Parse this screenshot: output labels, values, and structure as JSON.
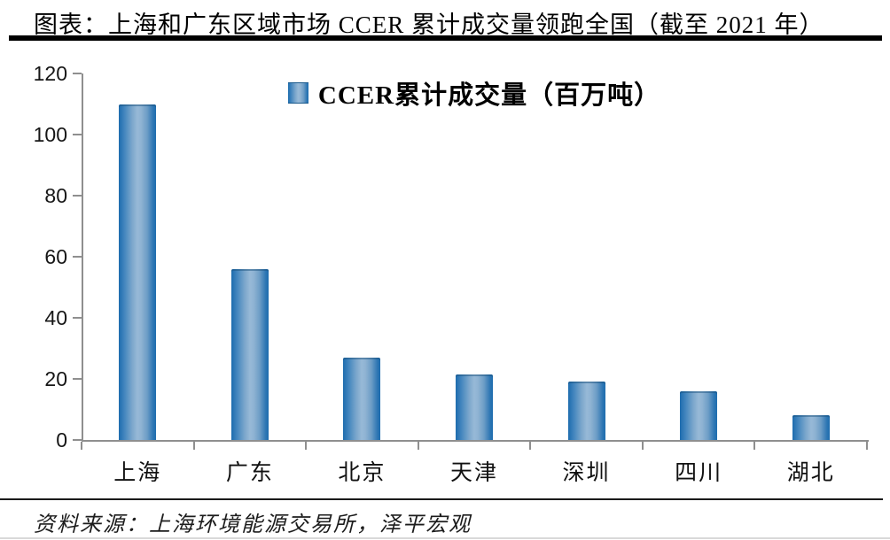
{
  "header": {
    "title": "图表：上海和广东区域市场 CCER 累计成交量领跑全国（截至 2021 年）"
  },
  "footer": {
    "source": "资料来源：上海环境能源交易所，泽平宏观"
  },
  "chart_data": {
    "type": "bar",
    "title": "上海和广东区域市场CCER累计成交量领跑全国（截至2021年）",
    "legend": "CCER累计成交量（百万吨）",
    "legend_position": "top-center",
    "categories": [
      "上海",
      "广东",
      "北京",
      "天津",
      "深圳",
      "四川",
      "湖北"
    ],
    "values": [
      110,
      56,
      27,
      21.5,
      19,
      16,
      8
    ],
    "xlabel": "",
    "ylabel": "",
    "ylim": [
      0,
      120
    ],
    "yticks": [
      0,
      20,
      40,
      60,
      80,
      100,
      120
    ],
    "grid": false,
    "colors": {
      "bar_edge": "#1d6cae",
      "bar_center": "#97b9d7",
      "axis": "#8f8f8f",
      "text": "#000000"
    }
  }
}
